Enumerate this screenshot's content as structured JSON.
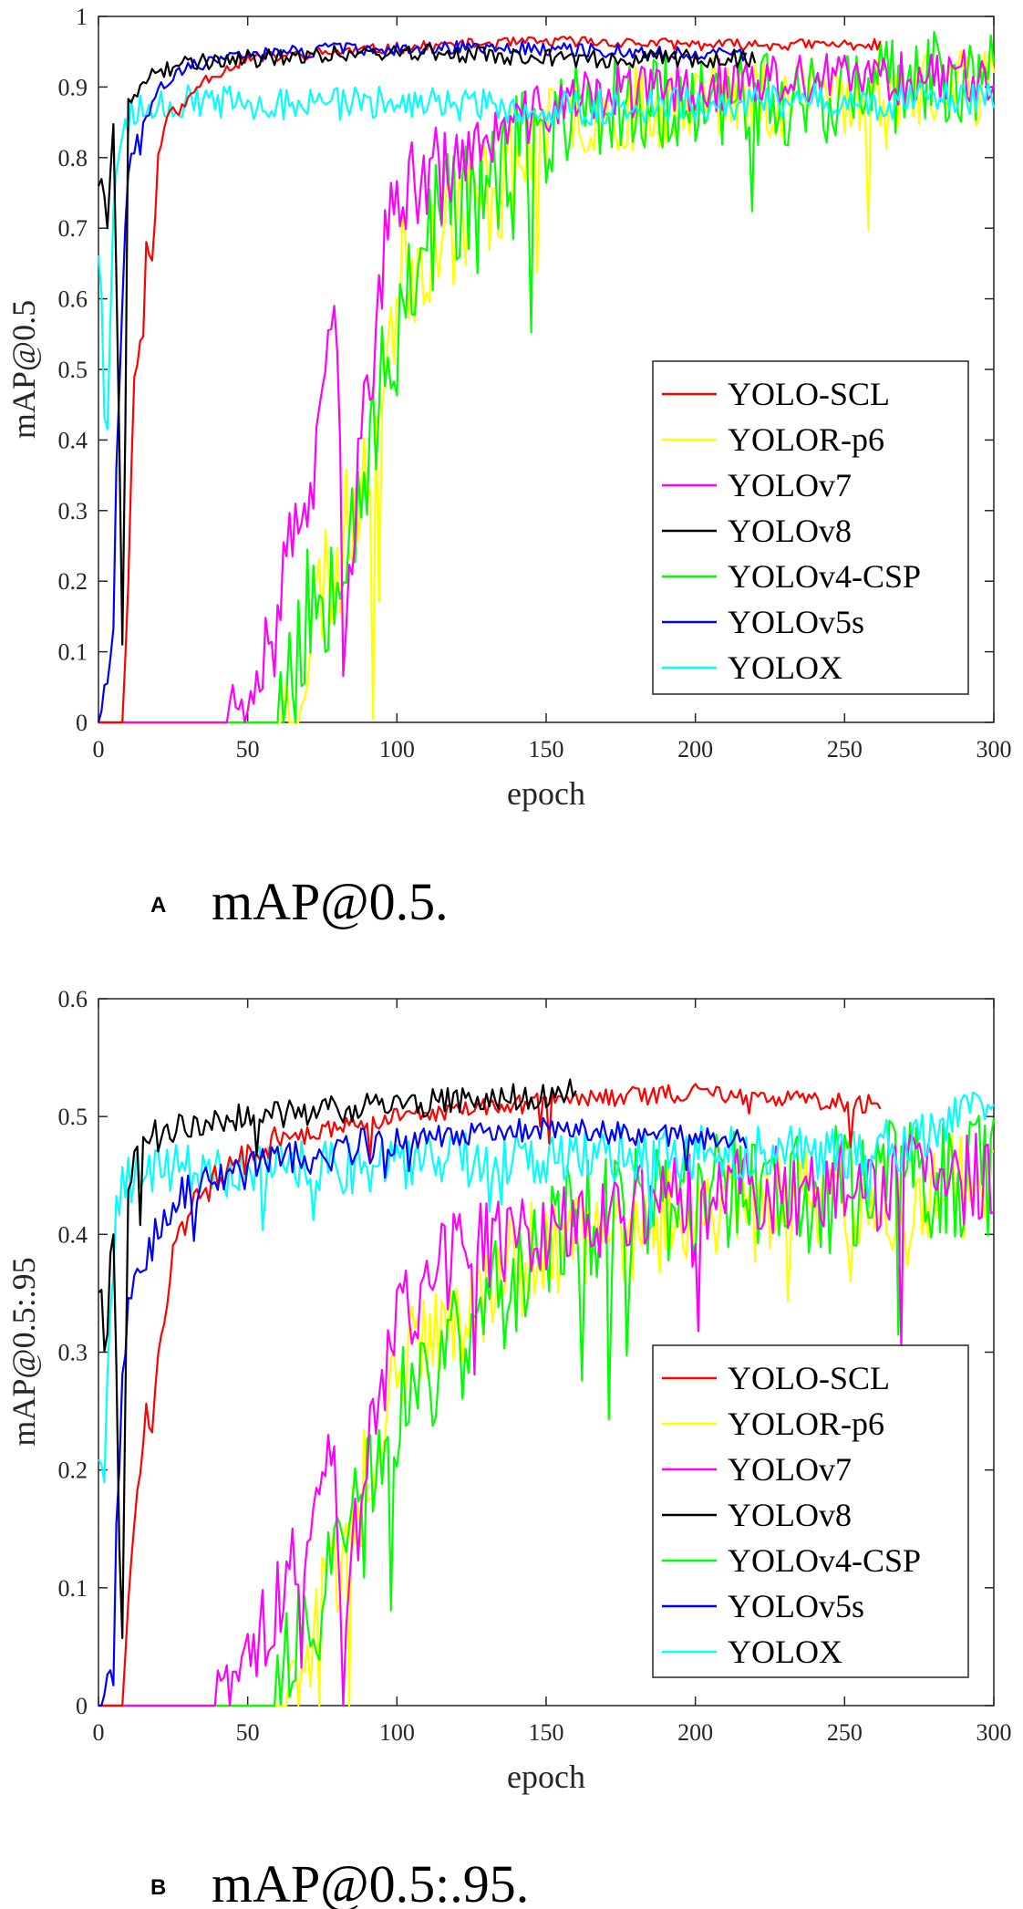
{
  "colors": {
    "YOLO-SCL": "#ff0000",
    "YOLOR-p6": "#ffff00",
    "YOLOv7": "#ff00ff",
    "YOLOv8": "#000000",
    "YOLOv4-CSP": "#00ff00",
    "YOLOv5s": "#0000ff",
    "YOLOX": "#00ffff"
  },
  "chart_data": [
    {
      "type": "line",
      "panel_letter": "A",
      "caption": "mAP@0.5.",
      "xlabel": "epoch",
      "ylabel": "mAP@0.5",
      "xlim": [
        0,
        300
      ],
      "ylim": [
        0,
        1
      ],
      "xticks": [
        "0",
        "50",
        "100",
        "150",
        "200",
        "250",
        "300"
      ],
      "yticks": [
        "0",
        "0.1",
        "0.2",
        "0.3",
        "0.4",
        "0.5",
        "0.6",
        "0.7",
        "0.8",
        "0.9",
        "1"
      ],
      "legend_position": "right-middle",
      "series": [
        {
          "name": "YOLO-SCL",
          "end": 262,
          "anchors": [
            [
              0,
              0
            ],
            [
              8,
              0
            ],
            [
              10,
              0.2
            ],
            [
              12,
              0.5
            ],
            [
              15,
              0.55
            ],
            [
              16,
              0.68
            ],
            [
              18,
              0.65
            ],
            [
              20,
              0.8
            ],
            [
              23,
              0.86
            ],
            [
              28,
              0.87
            ],
            [
              35,
              0.91
            ],
            [
              50,
              0.94
            ],
            [
              80,
              0.95
            ],
            [
              120,
              0.96
            ],
            [
              160,
              0.965
            ],
            [
              200,
              0.96
            ],
            [
              262,
              0.96
            ]
          ],
          "noise": 0.008,
          "seed": 11
        },
        {
          "name": "YOLOR-p6",
          "end": 300,
          "anchors": [
            [
              0,
              0
            ],
            [
              60,
              0
            ],
            [
              66,
              0.04
            ],
            [
              70,
              0.1
            ],
            [
              75,
              0.2
            ],
            [
              80,
              0.22
            ],
            [
              85,
              0.3
            ],
            [
              90,
              0.4
            ],
            [
              96,
              0.5
            ],
            [
              100,
              0.62
            ],
            [
              110,
              0.68
            ],
            [
              120,
              0.72
            ],
            [
              130,
              0.75
            ],
            [
              140,
              0.8
            ],
            [
              150,
              0.84
            ],
            [
              160,
              0.86
            ],
            [
              180,
              0.87
            ],
            [
              200,
              0.88
            ],
            [
              250,
              0.89
            ],
            [
              300,
              0.9
            ]
          ],
          "noise": 0.06,
          "seed": 23
        },
        {
          "name": "YOLOv7",
          "end": 300,
          "anchors": [
            [
              0,
              0
            ],
            [
              38,
              0
            ],
            [
              45,
              0.02
            ],
            [
              52,
              0.07
            ],
            [
              58,
              0.15
            ],
            [
              63,
              0.22
            ],
            [
              68,
              0.3
            ],
            [
              72,
              0.33
            ],
            [
              76,
              0.45
            ],
            [
              79,
              0.6
            ],
            [
              81,
              0.4
            ],
            [
              82,
              0.02
            ],
            [
              84,
              0.22
            ],
            [
              88,
              0.4
            ],
            [
              93,
              0.55
            ],
            [
              97,
              0.7
            ],
            [
              102,
              0.75
            ],
            [
              110,
              0.78
            ],
            [
              120,
              0.8
            ],
            [
              130,
              0.82
            ],
            [
              140,
              0.85
            ],
            [
              150,
              0.87
            ],
            [
              170,
              0.89
            ],
            [
              200,
              0.9
            ],
            [
              250,
              0.91
            ],
            [
              300,
              0.92
            ]
          ],
          "noise": 0.04,
          "seed": 37
        },
        {
          "name": "YOLOv8",
          "end": 220,
          "anchors": [
            [
              0,
              0.77
            ],
            [
              3,
              0.72
            ],
            [
              5,
              0.85
            ],
            [
              7,
              0.4
            ],
            [
              8,
              0.09
            ],
            [
              10,
              0.88
            ],
            [
              15,
              0.91
            ],
            [
              25,
              0.93
            ],
            [
              50,
              0.94
            ],
            [
              100,
              0.95
            ],
            [
              150,
              0.94
            ],
            [
              220,
              0.94
            ]
          ],
          "noise": 0.013,
          "seed": 41
        },
        {
          "name": "YOLOv4-CSP",
          "end": 300,
          "anchors": [
            [
              0,
              0
            ],
            [
              58,
              0
            ],
            [
              64,
              0.05
            ],
            [
              70,
              0.15
            ],
            [
              76,
              0.2
            ],
            [
              82,
              0.28
            ],
            [
              88,
              0.35
            ],
            [
              95,
              0.45
            ],
            [
              102,
              0.6
            ],
            [
              110,
              0.7
            ],
            [
              120,
              0.73
            ],
            [
              130,
              0.75
            ],
            [
              140,
              0.78
            ],
            [
              150,
              0.83
            ],
            [
              160,
              0.87
            ],
            [
              180,
              0.88
            ],
            [
              200,
              0.88
            ],
            [
              250,
              0.89
            ],
            [
              300,
              0.92
            ]
          ],
          "noise": 0.07,
          "seed": 53
        },
        {
          "name": "YOLOv5s",
          "end": 217,
          "anchors": [
            [
              0,
              0
            ],
            [
              3,
              0.07
            ],
            [
              5,
              0.13
            ],
            [
              6,
              0.37
            ],
            [
              8,
              0.6
            ],
            [
              10,
              0.78
            ],
            [
              14,
              0.84
            ],
            [
              20,
              0.9
            ],
            [
              30,
              0.93
            ],
            [
              60,
              0.95
            ],
            [
              100,
              0.955
            ],
            [
              150,
              0.955
            ],
            [
              217,
              0.945
            ]
          ],
          "noise": 0.01,
          "seed": 67
        },
        {
          "name": "YOLOX",
          "end": 300,
          "anchors": [
            [
              0,
              0.68
            ],
            [
              2,
              0.47
            ],
            [
              4,
              0.6
            ],
            [
              6,
              0.8
            ],
            [
              10,
              0.86
            ],
            [
              20,
              0.88
            ],
            [
              50,
              0.875
            ],
            [
              100,
              0.88
            ],
            [
              150,
              0.87
            ],
            [
              200,
              0.875
            ],
            [
              240,
              0.88
            ],
            [
              250,
              0.875
            ],
            [
              300,
              0.885
            ]
          ],
          "noise": 0.025,
          "seed": 79
        }
      ]
    },
    {
      "type": "line",
      "panel_letter": "B",
      "caption": "mAP@0.5:.95.",
      "xlabel": "epoch",
      "ylabel": "mAP@0.5:.95",
      "xlim": [
        0,
        300
      ],
      "ylim": [
        0,
        0.6
      ],
      "xticks": [
        "0",
        "50",
        "100",
        "150",
        "200",
        "250",
        "300"
      ],
      "yticks": [
        "0",
        "0.1",
        "0.2",
        "0.3",
        "0.4",
        "0.5",
        "0.6"
      ],
      "legend_position": "right-middle",
      "series": [
        {
          "name": "YOLO-SCL",
          "end": 262,
          "anchors": [
            [
              0,
              0
            ],
            [
              8,
              0
            ],
            [
              10,
              0.1
            ],
            [
              13,
              0.18
            ],
            [
              16,
              0.25
            ],
            [
              18,
              0.22
            ],
            [
              20,
              0.3
            ],
            [
              25,
              0.38
            ],
            [
              30,
              0.42
            ],
            [
              40,
              0.45
            ],
            [
              60,
              0.48
            ],
            [
              100,
              0.5
            ],
            [
              160,
              0.515
            ],
            [
              200,
              0.52
            ],
            [
              262,
              0.51
            ]
          ],
          "noise": 0.008,
          "seed": 12
        },
        {
          "name": "YOLOR-p6",
          "end": 300,
          "anchors": [
            [
              0,
              0
            ],
            [
              60,
              0
            ],
            [
              66,
              0.02
            ],
            [
              72,
              0.06
            ],
            [
              80,
              0.12
            ],
            [
              88,
              0.18
            ],
            [
              96,
              0.25
            ],
            [
              100,
              0.28
            ],
            [
              110,
              0.31
            ],
            [
              120,
              0.33
            ],
            [
              130,
              0.35
            ],
            [
              140,
              0.37
            ],
            [
              150,
              0.39
            ],
            [
              170,
              0.4
            ],
            [
              200,
              0.42
            ],
            [
              250,
              0.43
            ],
            [
              300,
              0.44
            ]
          ],
          "noise": 0.03,
          "seed": 24
        },
        {
          "name": "YOLOv7",
          "end": 300,
          "anchors": [
            [
              0,
              0
            ],
            [
              38,
              0
            ],
            [
              45,
              0.01
            ],
            [
              52,
              0.04
            ],
            [
              58,
              0.08
            ],
            [
              64,
              0.12
            ],
            [
              70,
              0.15
            ],
            [
              76,
              0.2
            ],
            [
              79,
              0.22
            ],
            [
              81,
              0.1
            ],
            [
              82,
              0.0
            ],
            [
              84,
              0.12
            ],
            [
              90,
              0.2
            ],
            [
              95,
              0.28
            ],
            [
              100,
              0.33
            ],
            [
              110,
              0.36
            ],
            [
              120,
              0.38
            ],
            [
              130,
              0.39
            ],
            [
              140,
              0.4
            ],
            [
              160,
              0.41
            ],
            [
              200,
              0.43
            ],
            [
              250,
              0.44
            ],
            [
              300,
              0.45
            ]
          ],
          "noise": 0.025,
          "seed": 38
        },
        {
          "name": "YOLOv8",
          "end": 160,
          "anchors": [
            [
              0,
              0.36
            ],
            [
              3,
              0.33
            ],
            [
              5,
              0.4
            ],
            [
              7,
              0.15
            ],
            [
              8,
              0.04
            ],
            [
              10,
              0.45
            ],
            [
              15,
              0.47
            ],
            [
              25,
              0.49
            ],
            [
              50,
              0.5
            ],
            [
              100,
              0.51
            ],
            [
              130,
              0.515
            ],
            [
              160,
              0.52
            ]
          ],
          "noise": 0.012,
          "seed": 42
        },
        {
          "name": "YOLOv4-CSP",
          "end": 300,
          "anchors": [
            [
              0,
              0
            ],
            [
              58,
              0
            ],
            [
              64,
              0.03
            ],
            [
              70,
              0.06
            ],
            [
              76,
              0.1
            ],
            [
              84,
              0.15
            ],
            [
              92,
              0.2
            ],
            [
              100,
              0.25
            ],
            [
              110,
              0.28
            ],
            [
              120,
              0.3
            ],
            [
              130,
              0.33
            ],
            [
              140,
              0.36
            ],
            [
              150,
              0.39
            ],
            [
              160,
              0.41
            ],
            [
              180,
              0.42
            ],
            [
              200,
              0.43
            ],
            [
              250,
              0.44
            ],
            [
              300,
              0.45
            ]
          ],
          "noise": 0.035,
          "seed": 54
        },
        {
          "name": "YOLOv5s",
          "end": 217,
          "anchors": [
            [
              0,
              0
            ],
            [
              3,
              0.02
            ],
            [
              5,
              0.03
            ],
            [
              6,
              0.15
            ],
            [
              8,
              0.28
            ],
            [
              10,
              0.34
            ],
            [
              14,
              0.36
            ],
            [
              20,
              0.41
            ],
            [
              30,
              0.44
            ],
            [
              60,
              0.46
            ],
            [
              100,
              0.48
            ],
            [
              150,
              0.49
            ],
            [
              217,
              0.48
            ]
          ],
          "noise": 0.01,
          "seed": 68
        },
        {
          "name": "YOLOX",
          "end": 300,
          "anchors": [
            [
              0,
              0.22
            ],
            [
              2,
              0.18
            ],
            [
              4,
              0.35
            ],
            [
              6,
              0.42
            ],
            [
              10,
              0.45
            ],
            [
              20,
              0.455
            ],
            [
              50,
              0.455
            ],
            [
              100,
              0.46
            ],
            [
              150,
              0.465
            ],
            [
              200,
              0.47
            ],
            [
              250,
              0.47
            ],
            [
              280,
              0.48
            ],
            [
              290,
              0.51
            ],
            [
              300,
              0.5
            ]
          ],
          "noise": 0.015,
          "seed": 80
        }
      ]
    }
  ]
}
